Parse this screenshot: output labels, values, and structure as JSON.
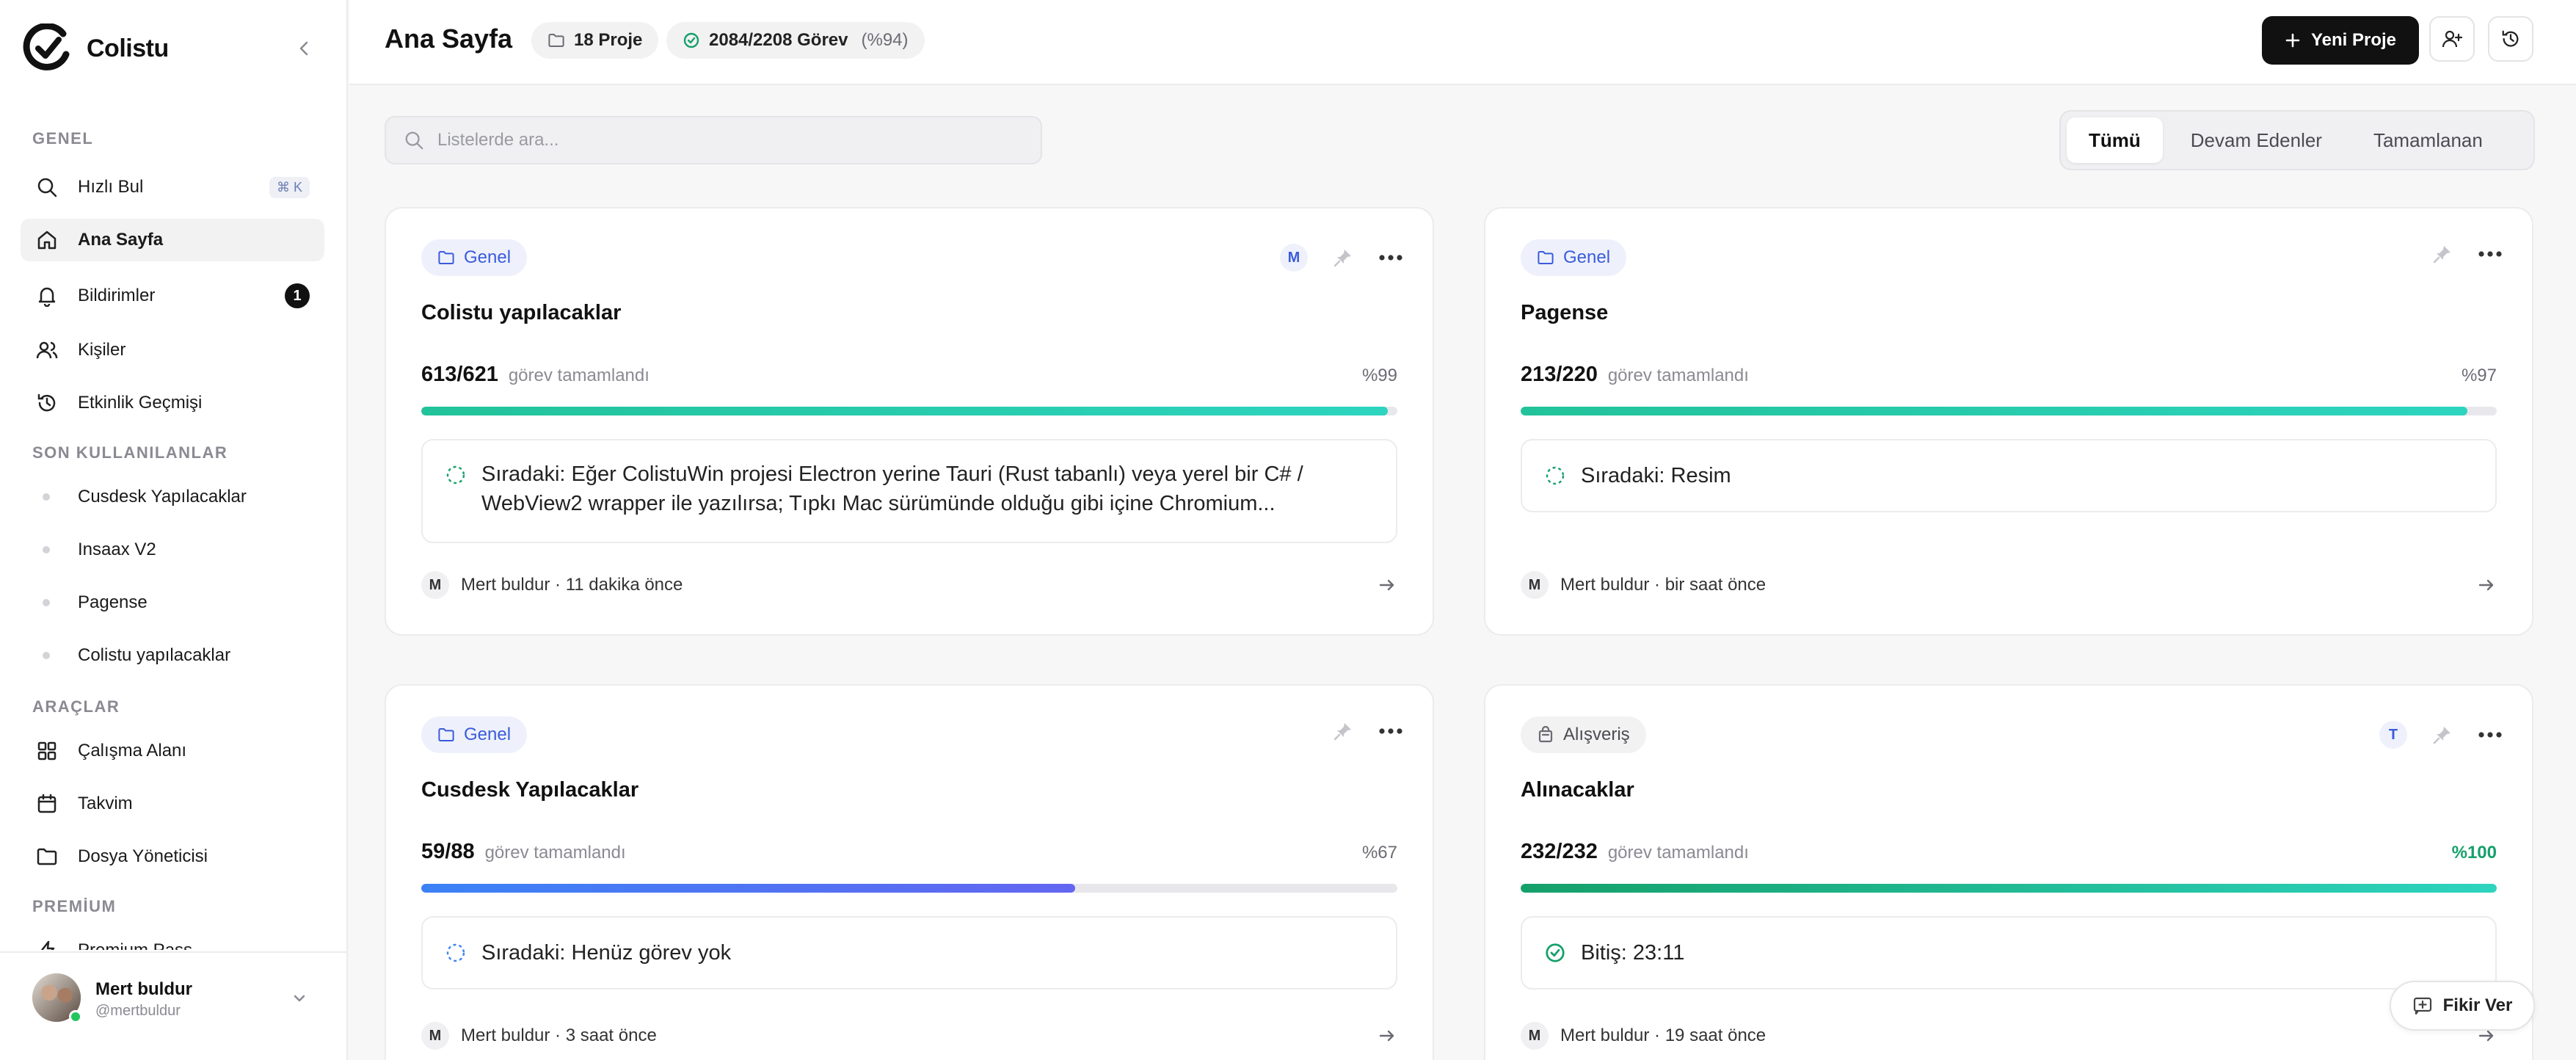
{
  "app": {
    "name": "Colistu"
  },
  "sidebar": {
    "sections": {
      "general": "GENEL",
      "recent": "SON KULLANILANLAR",
      "tools": "ARAÇLAR",
      "premium": "PREMİUM"
    },
    "quick_find": {
      "label": "Hızlı Bul",
      "shortcut": "⌘ K"
    },
    "items": [
      {
        "label": "Ana Sayfa"
      },
      {
        "label": "Bildirimler",
        "badge": "1"
      },
      {
        "label": "Kişiler"
      },
      {
        "label": "Etkinlik Geçmişi"
      }
    ],
    "recent": [
      "Cusdesk Yapılacaklar",
      "Insaax V2",
      "Pagense",
      "Colistu yapılacaklar"
    ],
    "tools": [
      "Çalışma Alanı",
      "Takvim",
      "Dosya Yöneticisi"
    ],
    "premium_item": "Premium Pass",
    "user": {
      "name": "Mert buldur",
      "handle": "@mertbuldur"
    }
  },
  "header": {
    "title": "Ana Sayfa",
    "projects_chip": "18 Proje",
    "tasks_chip": "2084/2208 Görev",
    "tasks_pct": "(%94)",
    "new_project": "Yeni Proje"
  },
  "search": {
    "placeholder": "Listelerde ara..."
  },
  "filters": [
    "Tümü",
    "Devam Edenler",
    "Tamamlanan"
  ],
  "completed_label": "görev tamamlandı",
  "cards": [
    {
      "category": "Genel",
      "title": "Colistu yapılacaklar",
      "member": "M",
      "progress": "613/621",
      "percent": "%99",
      "progress_fraction": 0.99,
      "bar_color": "#22c39a",
      "next": "Sıradaki: Eğer ColistuWin projesi Electron yerine Tauri (Rust tabanlı) veya yerel bir C# / WebView2 wrapper ile yazılırsa; Tıpkı Mac sürümünde olduğu gibi içine Chromium...",
      "author_initial": "M",
      "footer": "Mert buldur · 11 dakika önce"
    },
    {
      "category": "Genel",
      "title": "Pagense",
      "progress": "213/220",
      "percent": "%97",
      "progress_fraction": 0.97,
      "bar_color": "#22c39a",
      "next": "Sıradaki: Resim",
      "author_initial": "M",
      "footer": "Mert buldur · bir saat önce"
    },
    {
      "category": "Genel",
      "title": "Cusdesk Yapılacaklar",
      "progress": "59/88",
      "percent": "%67",
      "progress_fraction": 0.67,
      "bar_color": "#4c6ef5",
      "next": "Sıradaki: Henüz görev yok",
      "author_initial": "M",
      "footer": "Mert buldur · 3 saat önce"
    },
    {
      "category": "Alışveriş",
      "title": "Alınacaklar",
      "member": "T",
      "progress": "232/232",
      "percent": "%100",
      "progress_fraction": 1.0,
      "bar_color": "#15a06a",
      "next": "Bitiş: 23:11",
      "author_initial": "M",
      "footer": "Mert buldur · 19 saat önce"
    }
  ],
  "feedback": "Fikir Ver"
}
